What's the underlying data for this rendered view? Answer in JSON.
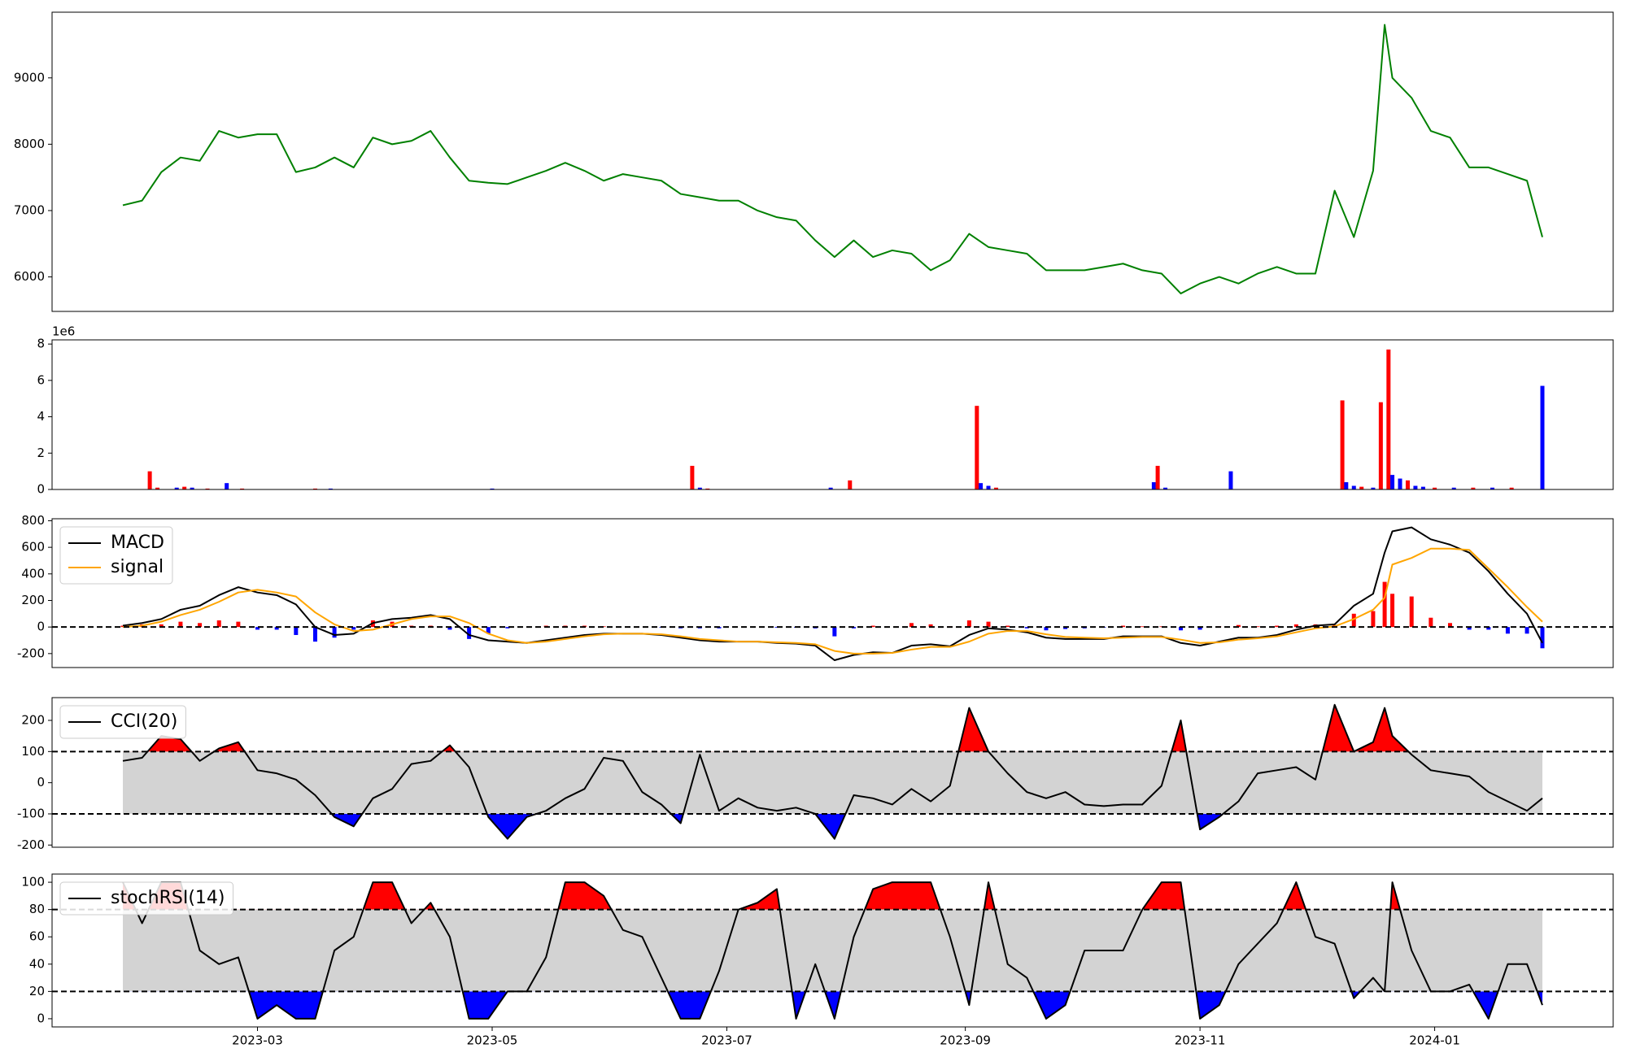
{
  "chart_data": [
    {
      "type": "line",
      "x": [
        24,
        29,
        34,
        39,
        44,
        49,
        54,
        59,
        64,
        69,
        74,
        79,
        84,
        89,
        94,
        99,
        104,
        109,
        114,
        119,
        124,
        129,
        134,
        139,
        144,
        149,
        154,
        159,
        164,
        169,
        174,
        179,
        184,
        189,
        194,
        199,
        204,
        209,
        214,
        219,
        224,
        229,
        234,
        239,
        244,
        249,
        254,
        259,
        264,
        269,
        274,
        279,
        284,
        289,
        294,
        299,
        304,
        309,
        314,
        319,
        324,
        329,
        334,
        339,
        344,
        349,
        352,
        354,
        359,
        364,
        369,
        374,
        379,
        384,
        389,
        393
      ],
      "series": [
        {
          "color": "#008000",
          "values": [
            7080,
            7150,
            7580,
            7800,
            7750,
            8200,
            8100,
            8150,
            8150,
            7580,
            7650,
            7800,
            7650,
            8100,
            8000,
            8050,
            8200,
            7800,
            7450,
            7420,
            7400,
            7500,
            7600,
            7720,
            7600,
            7450,
            7550,
            7500,
            7450,
            7250,
            7200,
            7150,
            7150,
            7000,
            6900,
            6850,
            6550,
            6300,
            6550,
            6300,
            6400,
            6350,
            6100,
            6250,
            6650,
            6450,
            6400,
            6350,
            6100,
            6100,
            6100,
            6150,
            6200,
            6100,
            6050,
            5750,
            5900,
            6000,
            5900,
            6050,
            6150,
            6050,
            6050,
            7300,
            6600,
            7600,
            9800,
            9000,
            8700,
            8200,
            8100,
            7650,
            7650,
            7550,
            7450,
            6600
          ]
        }
      ],
      "xlim": [
        5.6,
        411.4
      ],
      "ylim": [
        5480,
        9990
      ],
      "yticks": [
        6000,
        7000,
        8000,
        9000
      ]
    },
    {
      "type": "bar",
      "offset_label": "1e6",
      "x": [
        31,
        33,
        38,
        40,
        42,
        46,
        51,
        55,
        74,
        78,
        120,
        172,
        174,
        176,
        208,
        213,
        246,
        247,
        249,
        251,
        292,
        293,
        295,
        312,
        341,
        342,
        344,
        346,
        349,
        351,
        353,
        354,
        356,
        358,
        360,
        362,
        365,
        370,
        375,
        380,
        385,
        393
      ],
      "values": [
        1.0,
        0.1,
        0.1,
        0.15,
        0.1,
        0.05,
        0.35,
        0.05,
        0.05,
        0.05,
        0.05,
        1.3,
        0.1,
        0.05,
        0.1,
        0.5,
        4.6,
        0.35,
        0.2,
        0.1,
        0.4,
        1.3,
        0.1,
        1.0,
        4.9,
        0.4,
        0.2,
        0.15,
        0.1,
        4.8,
        7.7,
        0.8,
        0.6,
        0.5,
        0.2,
        0.15,
        0.1,
        0.1,
        0.1,
        0.1,
        0.1,
        5.7
      ],
      "colors": [
        "red",
        "red",
        "blue",
        "red",
        "blue",
        "red",
        "blue",
        "red",
        "red",
        "blue",
        "blue",
        "red",
        "blue",
        "red",
        "blue",
        "red",
        "red",
        "blue",
        "blue",
        "red",
        "blue",
        "red",
        "blue",
        "blue",
        "red",
        "blue",
        "blue",
        "red",
        "blue",
        "red",
        "red",
        "blue",
        "blue",
        "red",
        "blue",
        "blue",
        "red",
        "blue",
        "red",
        "blue",
        "red",
        "blue"
      ],
      "xlim": [
        5.6,
        411.4
      ],
      "ylim": [
        0,
        8.23
      ],
      "yticks": [
        0,
        2,
        4,
        6,
        8
      ]
    },
    {
      "type": "line",
      "legend": "upper left",
      "hlines": [
        0
      ],
      "x": [
        24,
        29,
        34,
        39,
        44,
        49,
        54,
        59,
        64,
        69,
        74,
        79,
        84,
        89,
        94,
        99,
        104,
        109,
        114,
        119,
        124,
        129,
        134,
        139,
        144,
        149,
        154,
        159,
        164,
        169,
        174,
        179,
        184,
        189,
        194,
        199,
        204,
        209,
        214,
        219,
        224,
        229,
        234,
        239,
        244,
        249,
        254,
        259,
        264,
        269,
        274,
        279,
        284,
        289,
        294,
        299,
        304,
        309,
        314,
        319,
        324,
        329,
        334,
        339,
        344,
        349,
        352,
        354,
        359,
        364,
        369,
        374,
        379,
        384,
        389,
        393
      ],
      "series": [
        {
          "name": "MACD",
          "color": "#000000",
          "values": [
            10,
            30,
            60,
            130,
            160,
            240,
            300,
            260,
            240,
            170,
            0,
            -60,
            -50,
            30,
            60,
            70,
            90,
            60,
            -60,
            -100,
            -110,
            -120,
            -100,
            -80,
            -60,
            -50,
            -50,
            -50,
            -60,
            -80,
            -100,
            -110,
            -110,
            -110,
            -120,
            -125,
            -140,
            -250,
            -210,
            -190,
            -195,
            -140,
            -130,
            -145,
            -60,
            -10,
            -20,
            -40,
            -80,
            -90,
            -90,
            -90,
            -70,
            -70,
            -70,
            -120,
            -140,
            -110,
            -80,
            -80,
            -60,
            -20,
            10,
            20,
            160,
            250,
            560,
            720,
            750,
            660,
            620,
            560,
            420,
            250,
            100,
            -120
          ]
        },
        {
          "name": "signal",
          "color": "#ffa500",
          "values": [
            0,
            10,
            40,
            90,
            130,
            190,
            260,
            280,
            260,
            230,
            110,
            20,
            -30,
            -20,
            20,
            60,
            80,
            80,
            30,
            -50,
            -100,
            -120,
            -110,
            -90,
            -70,
            -55,
            -50,
            -50,
            -55,
            -70,
            -90,
            -100,
            -110,
            -110,
            -115,
            -120,
            -130,
            -180,
            -200,
            -200,
            -195,
            -170,
            -150,
            -150,
            -110,
            -50,
            -30,
            -30,
            -55,
            -75,
            -80,
            -85,
            -80,
            -75,
            -75,
            -95,
            -120,
            -115,
            -95,
            -85,
            -70,
            -40,
            -10,
            5,
            60,
            130,
            220,
            470,
            520,
            590,
            590,
            580,
            440,
            300,
            150,
            40
          ]
        }
      ],
      "histogram": {
        "positive_color": "red",
        "negative_color": "blue",
        "values": [
          10,
          20,
          20,
          40,
          30,
          50,
          40,
          -20,
          -20,
          -60,
          -110,
          -80,
          -20,
          50,
          40,
          10,
          10,
          -20,
          -90,
          -50,
          -10,
          0,
          10,
          10,
          10,
          5,
          0,
          0,
          -5,
          -10,
          -10,
          -10,
          0,
          0,
          -5,
          -5,
          -10,
          -70,
          -10,
          10,
          0,
          30,
          20,
          5,
          50,
          40,
          10,
          -10,
          -25,
          -15,
          -10,
          -5,
          10,
          5,
          5,
          -25,
          -20,
          5,
          15,
          5,
          10,
          20,
          20,
          15,
          100,
          120,
          340,
          250,
          230,
          70,
          30,
          -20,
          -20,
          -50,
          -50,
          -160
        ]
      },
      "xlim": [
        5.6,
        411.4
      ],
      "ylim": [
        -305,
        815
      ],
      "yticks": [
        -200,
        0,
        200,
        400,
        600,
        800
      ]
    },
    {
      "type": "line",
      "legend": "upper left",
      "band": {
        "lower": -100,
        "upper": 100,
        "color": "#d3d3d3"
      },
      "x": [
        24,
        29,
        34,
        39,
        44,
        49,
        54,
        59,
        64,
        69,
        74,
        79,
        84,
        89,
        94,
        99,
        104,
        109,
        114,
        119,
        124,
        129,
        134,
        139,
        144,
        149,
        154,
        159,
        164,
        169,
        174,
        179,
        184,
        189,
        194,
        199,
        204,
        209,
        214,
        219,
        224,
        229,
        234,
        239,
        244,
        249,
        254,
        259,
        264,
        269,
        274,
        279,
        284,
        289,
        294,
        299,
        304,
        309,
        314,
        319,
        324,
        329,
        334,
        339,
        344,
        349,
        352,
        354,
        359,
        364,
        369,
        374,
        379,
        384,
        389,
        393
      ],
      "series": [
        {
          "name": "CCI(20)",
          "color": "#000000",
          "above_color": "red",
          "below_color": "blue",
          "values": [
            70,
            80,
            150,
            140,
            70,
            110,
            130,
            40,
            30,
            10,
            -40,
            -110,
            -140,
            -50,
            -20,
            60,
            70,
            120,
            50,
            -110,
            -180,
            -110,
            -90,
            -50,
            -20,
            80,
            70,
            -30,
            -70,
            -130,
            90,
            -90,
            -50,
            -80,
            -90,
            -80,
            -100,
            -180,
            -40,
            -50,
            -70,
            -20,
            -60,
            -10,
            240,
            100,
            30,
            -30,
            -50,
            -30,
            -70,
            -75,
            -70,
            -70,
            -10,
            200,
            -150,
            -110,
            -60,
            30,
            40,
            50,
            10,
            250,
            100,
            130,
            240,
            150,
            90,
            40,
            30,
            20,
            -30,
            -60,
            -90,
            -50
          ]
        }
      ],
      "xlim": [
        5.6,
        411.4
      ],
      "ylim": [
        -207,
        273
      ],
      "yticks": [
        -200,
        -100,
        0,
        100,
        200
      ]
    },
    {
      "type": "line",
      "legend": "upper left",
      "band": {
        "lower": 20,
        "upper": 80,
        "color": "#d3d3d3"
      },
      "x": [
        24,
        29,
        34,
        39,
        44,
        49,
        54,
        59,
        64,
        69,
        74,
        79,
        84,
        89,
        94,
        99,
        104,
        109,
        114,
        119,
        124,
        129,
        134,
        139,
        144,
        149,
        154,
        159,
        164,
        169,
        174,
        179,
        184,
        189,
        194,
        199,
        204,
        209,
        214,
        219,
        224,
        229,
        234,
        239,
        244,
        249,
        254,
        259,
        264,
        269,
        274,
        279,
        284,
        289,
        294,
        299,
        304,
        309,
        314,
        319,
        324,
        329,
        334,
        339,
        344,
        349,
        352,
        354,
        359,
        364,
        369,
        374,
        379,
        384,
        389,
        393
      ],
      "series": [
        {
          "name": "stochRSI(14)",
          "color": "#000000",
          "above_color": "red",
          "below_color": "blue",
          "values": [
            100,
            70,
            100,
            100,
            50,
            40,
            45,
            0,
            10,
            0,
            0,
            50,
            60,
            100,
            100,
            70,
            85,
            60,
            0,
            0,
            20,
            20,
            45,
            100,
            100,
            90,
            65,
            60,
            30,
            0,
            0,
            35,
            80,
            85,
            95,
            0,
            40,
            0,
            60,
            95,
            100,
            100,
            100,
            60,
            10,
            100,
            40,
            30,
            0,
            10,
            50,
            50,
            50,
            80,
            100,
            100,
            0,
            10,
            40,
            55,
            70,
            100,
            60,
            55,
            15,
            30,
            20,
            100,
            50,
            20,
            20,
            25,
            0,
            40,
            40,
            10
          ]
        }
      ],
      "xlim": [
        5.6,
        411.4
      ],
      "ylim": [
        -6,
        106
      ],
      "yticks": [
        0,
        20,
        40,
        60,
        80,
        100
      ],
      "xticks": [
        {
          "value": 59,
          "label": "2023-03"
        },
        {
          "value": 120,
          "label": "2023-05"
        },
        {
          "value": 181,
          "label": "2023-07"
        },
        {
          "value": 243,
          "label": "2023-09"
        },
        {
          "value": 304,
          "label": "2023-11"
        },
        {
          "value": 365,
          "label": "2024-01"
        }
      ]
    }
  ]
}
